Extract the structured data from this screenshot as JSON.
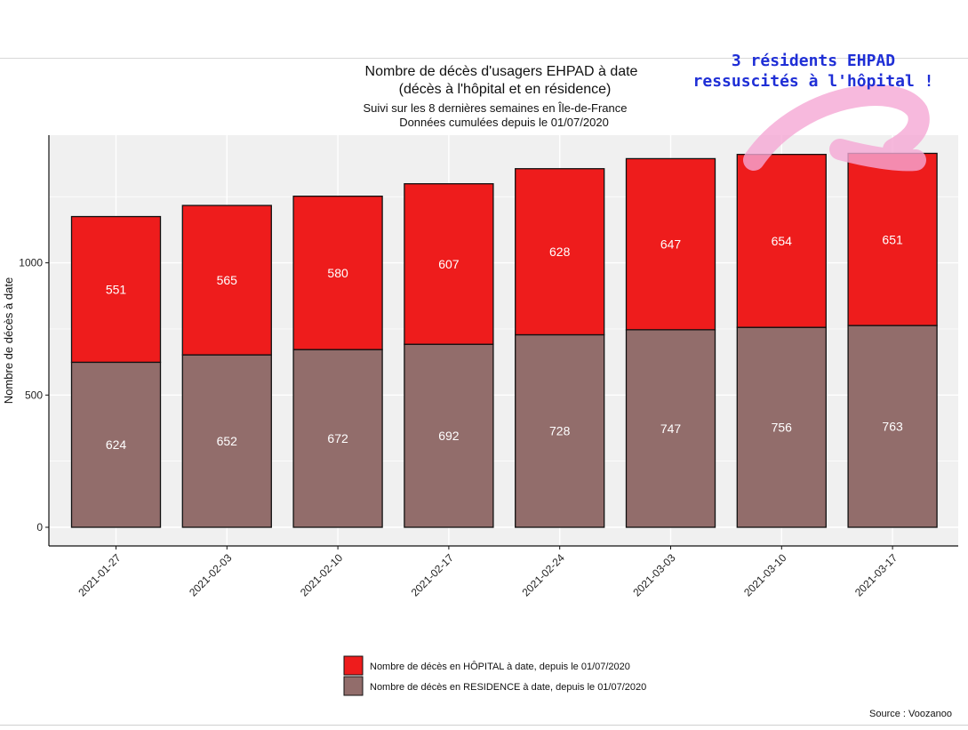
{
  "chart_data": {
    "type": "bar",
    "stacked": true,
    "title": "Nombre de décès d'usagers EHPAD à date",
    "title_line2": "(décès à l'hôpital et en résidence)",
    "subtitle": "Suivi sur les 8 dernières semaines en Île-de-France",
    "subtitle_line2": "Données cumulées depuis le 01/07/2020",
    "xlabel": "",
    "ylabel": "Nombre de décès à date",
    "ylim": [
      0,
      1480
    ],
    "yticks": [
      0,
      500,
      1000
    ],
    "grid": true,
    "categories": [
      "2021-01-27",
      "2021-02-03",
      "2021-02-10",
      "2021-02-17",
      "2021-02-24",
      "2021-03-03",
      "2021-03-10",
      "2021-03-17"
    ],
    "series": [
      {
        "name": "Nombre de décès en RESIDENCE à date, depuis le 01/07/2020",
        "color": "#926d6b",
        "values": [
          624,
          652,
          672,
          692,
          728,
          747,
          756,
          763
        ]
      },
      {
        "name": "Nombre de décès en HÔPITAL à date, depuis le 01/07/2020",
        "color": "#ee1c1c",
        "values": [
          551,
          565,
          580,
          607,
          628,
          647,
          654,
          651
        ]
      }
    ],
    "legend_position": "bottom",
    "legend_order": [
      1,
      0
    ],
    "source": "Source : Voozanoo",
    "annotation": {
      "line1": "3 résidents EHPAD",
      "line2": "ressuscités à l'hôpital !",
      "color": "#1f2fd6",
      "arrow_color": "#f5a8d4"
    }
  }
}
